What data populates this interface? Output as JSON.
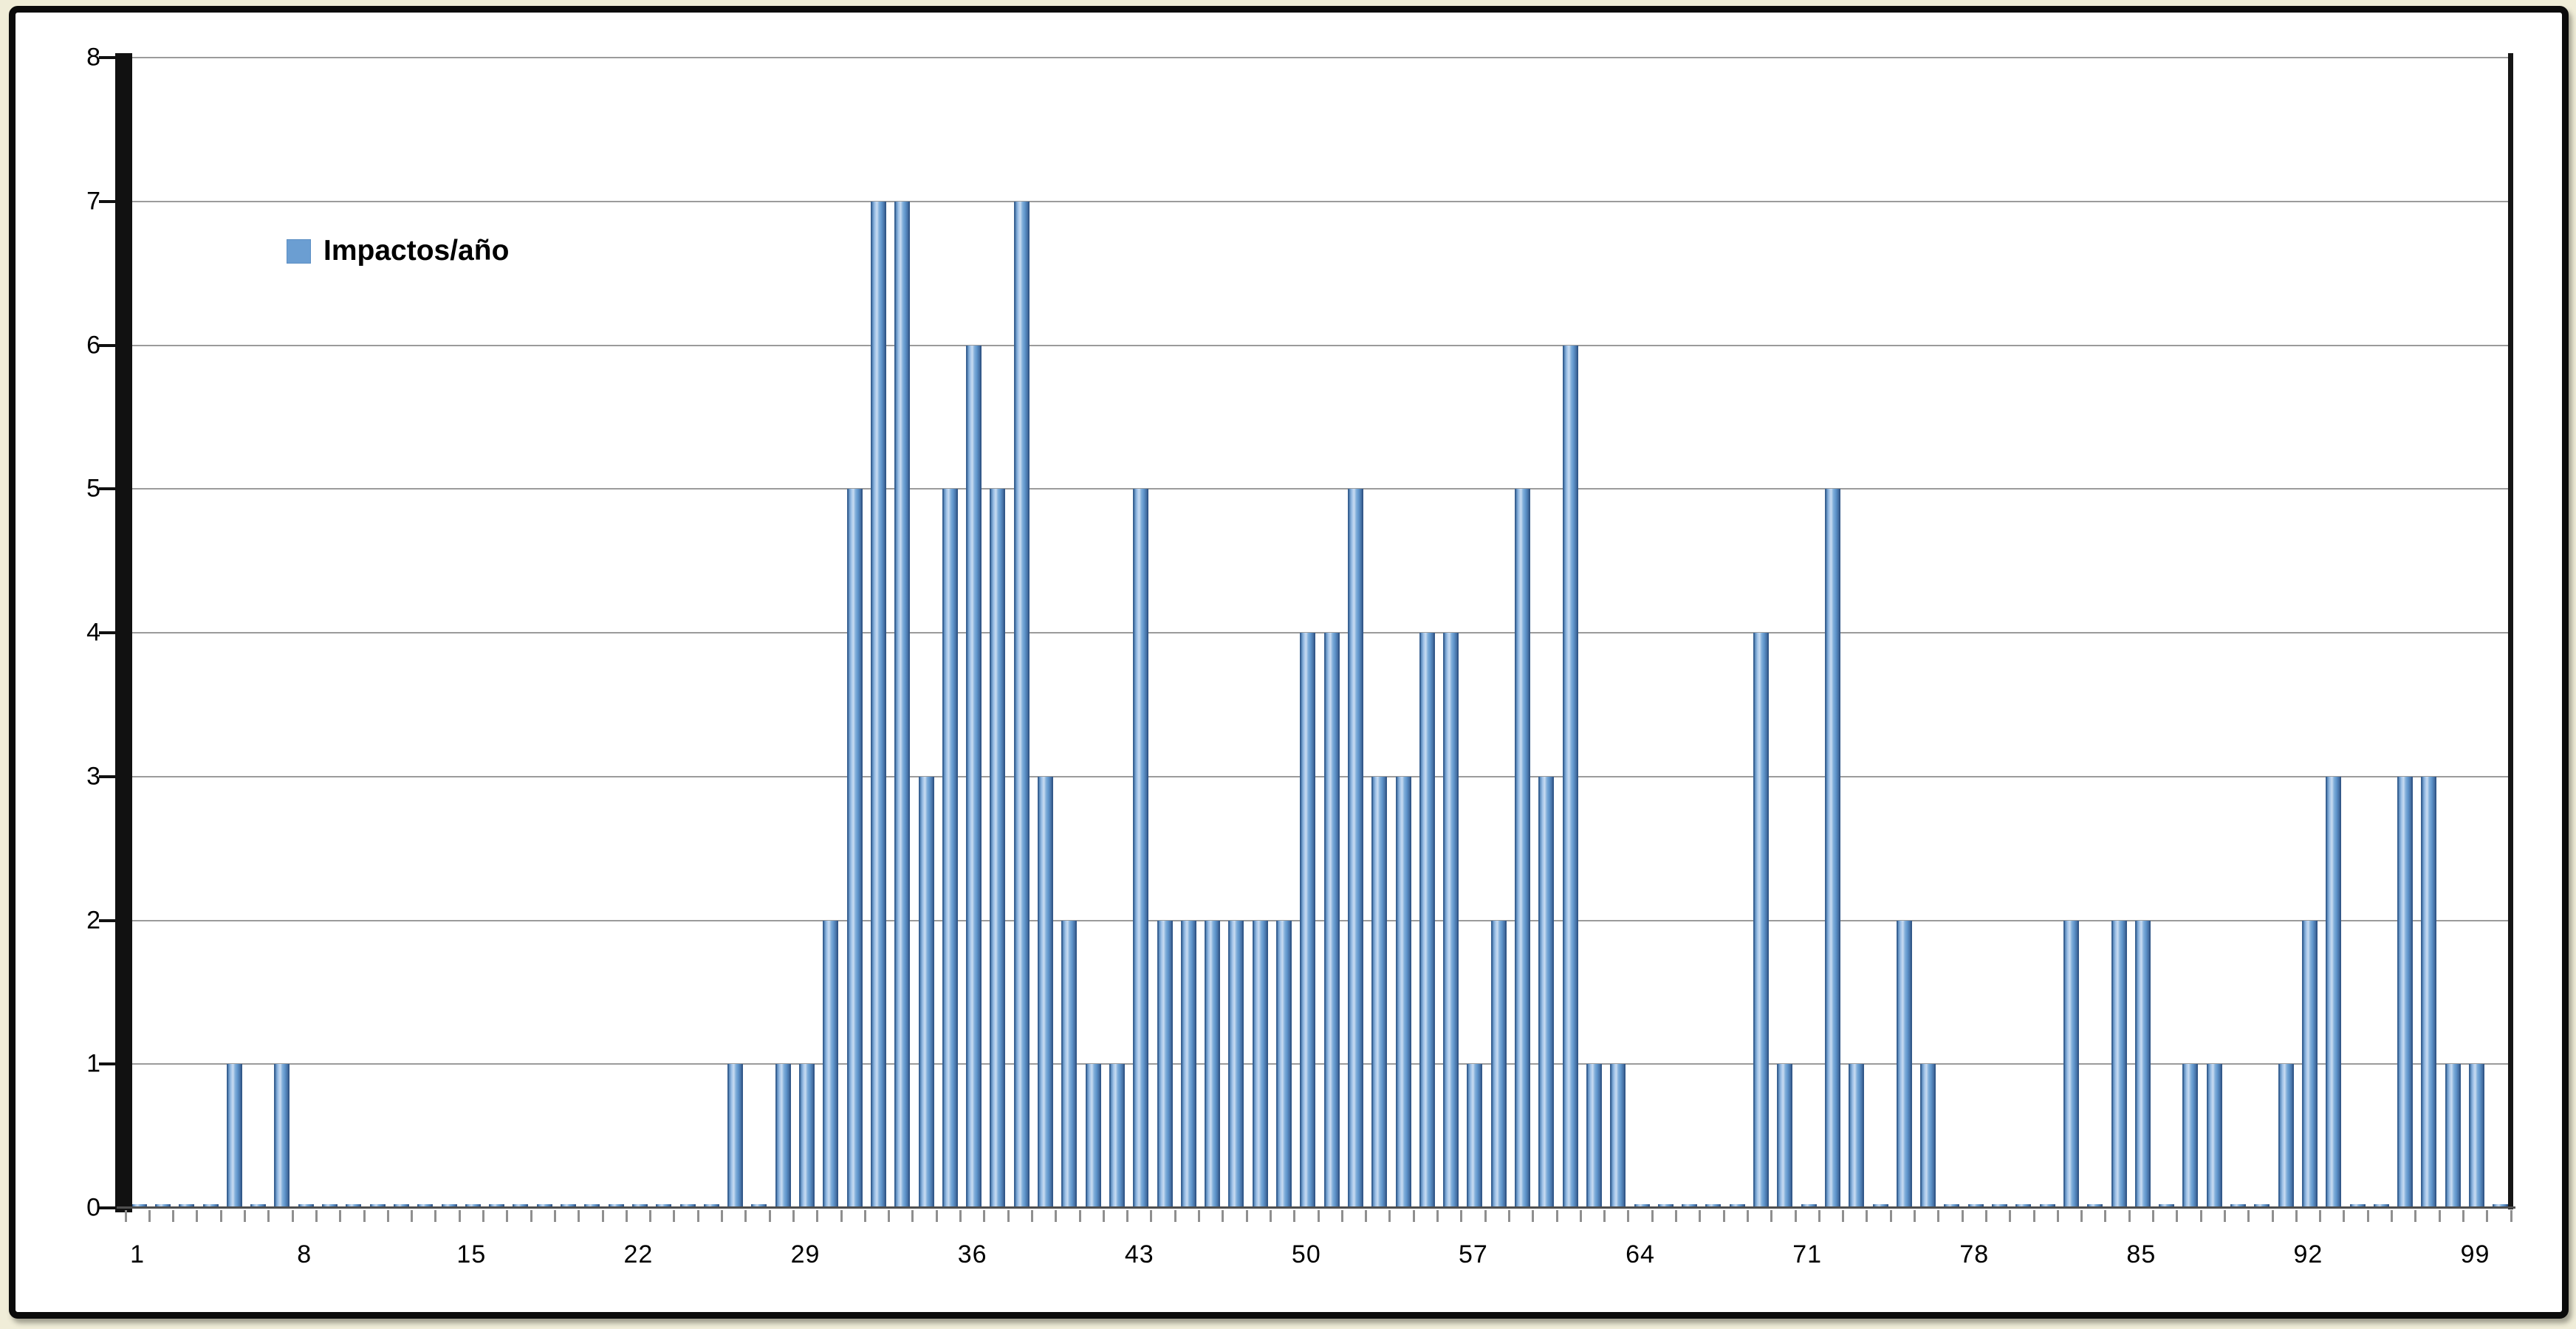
{
  "chart_data": {
    "type": "bar",
    "title": "",
    "xlabel": "",
    "ylabel": "",
    "legend_entries": [
      "Impactos/año"
    ],
    "legend_position": "inside-top-left",
    "grid": true,
    "ylim": [
      0,
      8
    ],
    "ytick_labels": [
      "0",
      "1",
      "2",
      "3",
      "4",
      "5",
      "6",
      "7",
      "8"
    ],
    "xtick_labels": [
      "1",
      "8",
      "15",
      "22",
      "29",
      "36",
      "43",
      "50",
      "57",
      "64",
      "71",
      "78",
      "85",
      "92",
      "99"
    ],
    "xtick_positions": [
      1,
      8,
      15,
      22,
      29,
      36,
      43,
      50,
      57,
      64,
      71,
      78,
      85,
      92,
      99
    ],
    "x_range": [
      1,
      99
    ],
    "total_slots": 100,
    "categories": [
      1,
      2,
      3,
      4,
      5,
      6,
      7,
      8,
      9,
      10,
      11,
      12,
      13,
      14,
      15,
      16,
      17,
      18,
      19,
      20,
      21,
      22,
      23,
      24,
      25,
      26,
      27,
      28,
      29,
      30,
      31,
      32,
      33,
      34,
      35,
      36,
      37,
      38,
      39,
      40,
      41,
      42,
      43,
      44,
      45,
      46,
      47,
      48,
      49,
      50,
      51,
      52,
      53,
      54,
      55,
      56,
      57,
      58,
      59,
      60,
      61,
      62,
      63,
      64,
      65,
      66,
      67,
      68,
      69,
      70,
      71,
      72,
      73,
      74,
      75,
      76,
      77,
      78,
      79,
      80,
      81,
      82,
      83,
      84,
      85,
      86,
      87,
      88,
      89,
      90,
      91,
      92,
      93,
      94,
      95,
      96,
      97,
      98,
      99
    ],
    "values": [
      0,
      0,
      0,
      0,
      1,
      0,
      1,
      0,
      0,
      0,
      0,
      0,
      0,
      0,
      0,
      0,
      0,
      0,
      0,
      0,
      0,
      0,
      0,
      0,
      0,
      1,
      0,
      1,
      1,
      2,
      5,
      7,
      7,
      3,
      5,
      6,
      5,
      7,
      3,
      2,
      1,
      1,
      5,
      2,
      2,
      2,
      2,
      2,
      2,
      4,
      4,
      5,
      3,
      3,
      4,
      4,
      1,
      2,
      5,
      3,
      6,
      1,
      1,
      0,
      0,
      0,
      0,
      0,
      4,
      1,
      0,
      5,
      1,
      0,
      2,
      1,
      0,
      0,
      0,
      0,
      0,
      2,
      0,
      2,
      2,
      0,
      1,
      1,
      0,
      0,
      1,
      2,
      3,
      0,
      0,
      3,
      3,
      1,
      1
    ],
    "zero_values_drawn_as_slivers": true
  },
  "colors": {
    "page_background": "#f0edd8",
    "chart_background": "#ffffff",
    "frame_border": "#0b0b0b",
    "bar_fill_main": "#6096cc",
    "bar_fill_light": "#c9dcf1",
    "bar_fill_dark": "#40699c",
    "bar_border": "#3a6394",
    "gridline": "#9b9b9b",
    "axis": "#111111",
    "tick": "#8f8f8f",
    "label_text": "#000000",
    "legend_swatch": "#6b9ed2"
  }
}
